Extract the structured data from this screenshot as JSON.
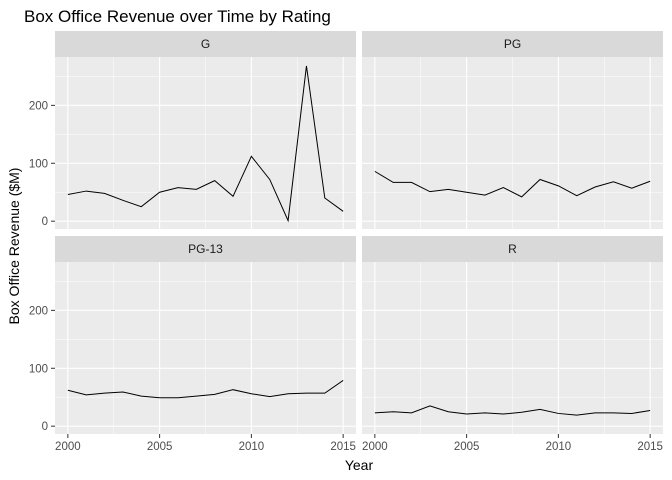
{
  "chart_data": {
    "type": "line",
    "title": "Box Office Revenue over Time by Rating",
    "xlabel": "Year",
    "ylabel": "Box Office Revenue ($M)",
    "xlim": [
      2000,
      2015
    ],
    "ylim": [
      0,
      270
    ],
    "x_ticks": [
      2000,
      2005,
      2010,
      2015
    ],
    "y_ticks": [
      0,
      100,
      200
    ],
    "grid": true,
    "facets": [
      {
        "name": "G",
        "x": [
          2000,
          2001,
          2002,
          2003,
          2004,
          2005,
          2006,
          2007,
          2008,
          2009,
          2010,
          2011,
          2012,
          2013,
          2014,
          2015
        ],
        "values": [
          46,
          52,
          48,
          36,
          25,
          50,
          58,
          55,
          70,
          43,
          112,
          72,
          1,
          268,
          40,
          17
        ]
      },
      {
        "name": "PG",
        "x": [
          2000,
          2001,
          2002,
          2003,
          2004,
          2005,
          2006,
          2007,
          2008,
          2009,
          2010,
          2011,
          2012,
          2013,
          2014,
          2015
        ],
        "values": [
          86,
          67,
          67,
          51,
          55,
          50,
          45,
          58,
          42,
          72,
          61,
          44,
          59,
          68,
          57,
          69
        ]
      },
      {
        "name": "PG-13",
        "x": [
          2000,
          2001,
          2002,
          2003,
          2004,
          2005,
          2006,
          2007,
          2008,
          2009,
          2010,
          2011,
          2012,
          2013,
          2014,
          2015
        ],
        "values": [
          62,
          54,
          57,
          59,
          52,
          49,
          49,
          52,
          55,
          63,
          56,
          51,
          56,
          57,
          57,
          79
        ]
      },
      {
        "name": "R",
        "x": [
          2000,
          2001,
          2002,
          2003,
          2004,
          2005,
          2006,
          2007,
          2008,
          2009,
          2010,
          2011,
          2012,
          2013,
          2014,
          2015
        ],
        "values": [
          23,
          25,
          23,
          35,
          25,
          21,
          23,
          21,
          24,
          29,
          22,
          19,
          23,
          23,
          22,
          27
        ]
      }
    ]
  },
  "colors": {
    "panel_bg": "#ebebeb",
    "strip_bg": "#d9d9d9",
    "grid_major": "#ffffff",
    "line": "#000000"
  }
}
